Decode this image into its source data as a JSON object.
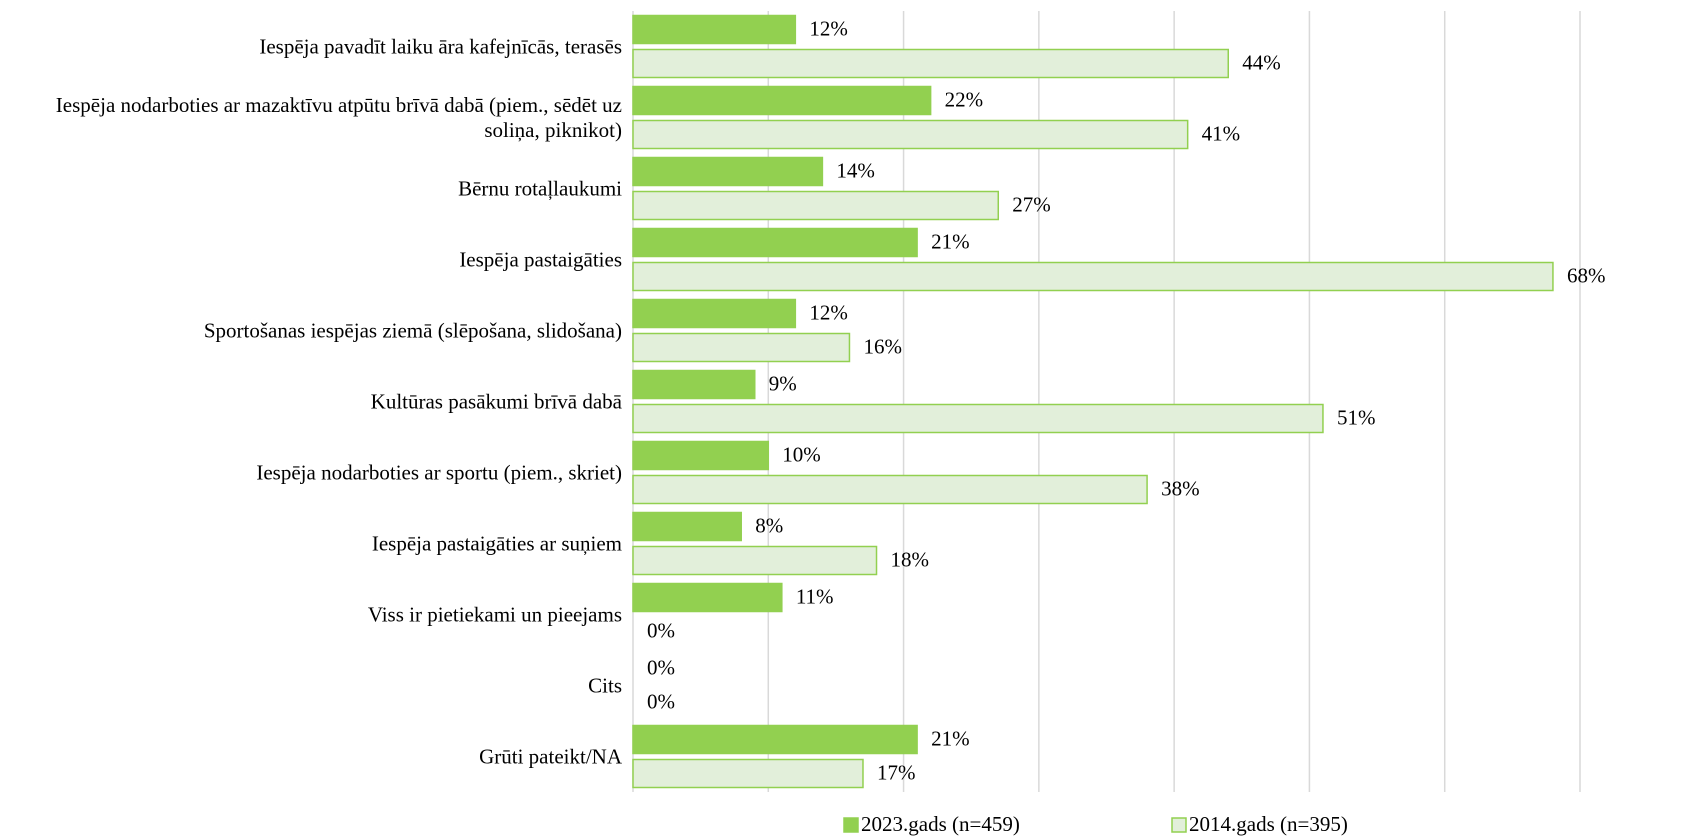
{
  "chart_data": {
    "type": "hbar",
    "categories": [
      "Iespēja pavadīt laiku āra kafejnīcās, terasēs",
      "Iespēja nodarboties ar mazaktīvu atpūtu brīvā dabā (piem., sēdēt uz soliņa, piknikot)",
      "Bērnu rotaļlaukumi",
      "Iespēja pastaigāties",
      "Sportošanas iespējas ziemā (slēpošana, slidošana)",
      "Kultūras pasākumi brīvā dabā",
      "Iespēja nodarboties ar sportu (piem., skriet)",
      "Iespēja pastaigāties ar suņiem",
      "Viss ir pietiekami un pieejams",
      "Cits",
      "Grūti pateikt/NA"
    ],
    "series": [
      {
        "name": "2023.gads (n=459)",
        "color": "#92d050",
        "border": "#92d050",
        "values": [
          12,
          22,
          14,
          21,
          12,
          9,
          10,
          8,
          11,
          0,
          21
        ],
        "value_labels": [
          "12%",
          "22%",
          "14%",
          "21%",
          "12%",
          "9%",
          "10%",
          "8%",
          "11%",
          "0%",
          "21%"
        ]
      },
      {
        "name": "2014.gads (n=395)",
        "color": "#e2efda",
        "border": "#92d050",
        "values": [
          44,
          41,
          27,
          68,
          16,
          51,
          38,
          18,
          0,
          0,
          17
        ],
        "value_labels": [
          "44%",
          "41%",
          "27%",
          "68%",
          "16%",
          "51%",
          "38%",
          "18%",
          "0%",
          "0%",
          "17%"
        ]
      }
    ],
    "xlim": [
      0,
      70
    ],
    "xticks": [
      0,
      10,
      20,
      30,
      40,
      50,
      60,
      70
    ],
    "tick_labels": false,
    "grid": true,
    "legend": "bottom"
  }
}
